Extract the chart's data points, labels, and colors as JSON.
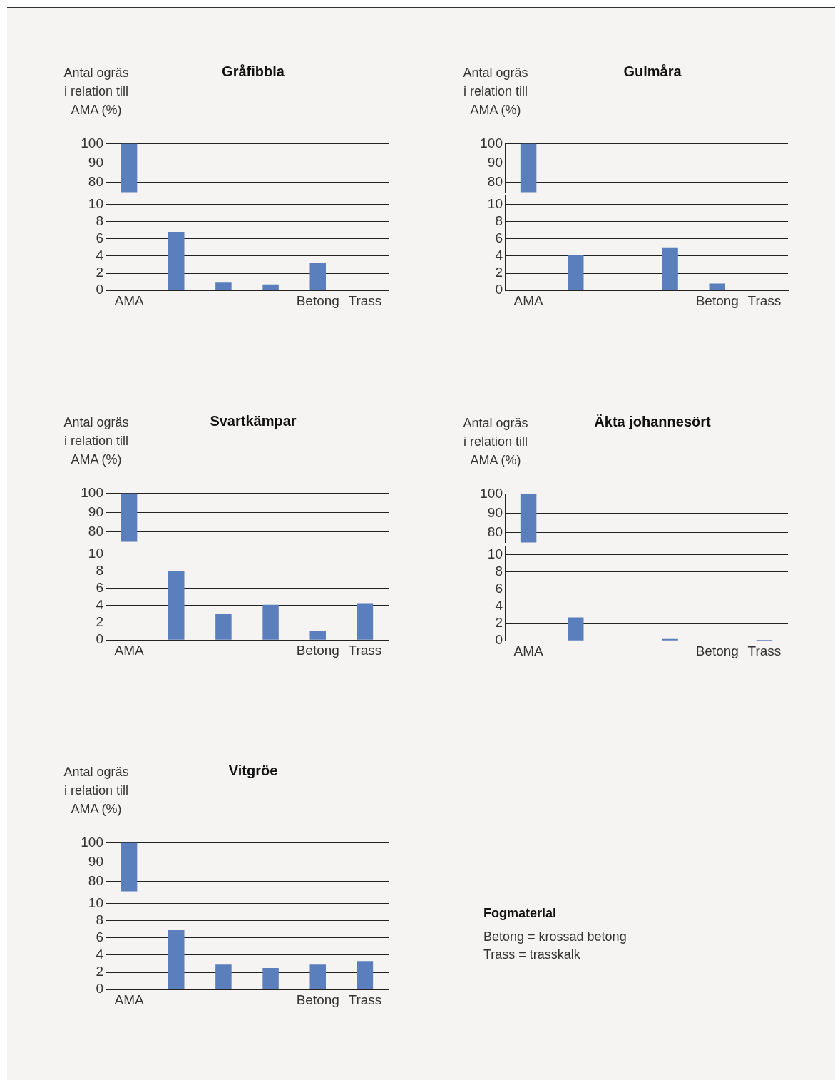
{
  "chart_data": [
    {
      "type": "bar",
      "title": "Gråfibbla",
      "ylabel": "Antal ogräs i relation till AMA (%)",
      "categories": [
        null,
        null,
        null,
        null,
        null,
        null
      ],
      "values": [
        100,
        null,
        null,
        null,
        null,
        null
      ],
      "color": "#5b7fbc",
      "ylim": [
        75,
        100
      ],
      "yticks": [
        80,
        90,
        100
      ],
      "grid": "y",
      "tick_labels": "y"
    },
    {
      "type": "bar",
      "categories": [
        "AMA",
        null,
        null,
        null,
        "Betong",
        "Trass"
      ],
      "values": [
        null,
        6.8,
        0.9,
        0.7,
        3.2,
        0
      ],
      "color": "#5b7fbc",
      "ylim": [
        0,
        11
      ],
      "yticks": [
        0,
        2,
        4,
        6,
        8,
        10
      ],
      "grid": "y"
    },
    {
      "type": "bar",
      "title": "Gulmåra",
      "ylabel": "Antal ogräs i relation till AMA (%)",
      "categories": [
        null,
        null,
        null,
        null,
        null,
        null
      ],
      "values": [
        100,
        null,
        null,
        null,
        null,
        null
      ],
      "color": "#5b7fbc",
      "ylim": [
        75,
        100
      ],
      "yticks": [
        80,
        90,
        100
      ],
      "grid": "y",
      "tick_labels": "y"
    },
    {
      "type": "bar",
      "categories": [
        "AMA",
        null,
        null,
        null,
        "Betong",
        "Trass"
      ],
      "values": [
        null,
        4.1,
        0,
        5.0,
        0.8,
        0
      ],
      "color": "#5b7fbc",
      "ylim": [
        0,
        11
      ],
      "yticks": [
        0,
        2,
        4,
        6,
        8,
        10
      ],
      "grid": "y"
    },
    {
      "type": "bar",
      "title": "Svartkämpar",
      "ylabel": "Antal ogräs i relation till AMA (%)",
      "categories": [
        null,
        null,
        null,
        null,
        null,
        null
      ],
      "values": [
        100,
        null,
        null,
        null,
        null,
        null
      ],
      "color": "#5b7fbc",
      "ylim": [
        75,
        100
      ],
      "yticks": [
        80,
        90,
        100
      ],
      "grid": "y",
      "tick_labels": "y"
    },
    {
      "type": "bar",
      "categories": [
        "AMA",
        null,
        null,
        null,
        "Betong",
        "Trass"
      ],
      "values": [
        null,
        8.0,
        3.0,
        4.1,
        1.1,
        4.2
      ],
      "color": "#5b7fbc",
      "ylim": [
        0,
        11
      ],
      "yticks": [
        0,
        2,
        4,
        6,
        8,
        10
      ],
      "grid": "y"
    },
    {
      "type": "bar",
      "title": "Äkta johannesört",
      "ylabel": "Antal ogräs i relation till AMA (%)",
      "categories": [
        null,
        null,
        null,
        null,
        null,
        null
      ],
      "values": [
        100,
        null,
        null,
        null,
        null,
        null
      ],
      "color": "#5b7fbc",
      "ylim": [
        75,
        100
      ],
      "yticks": [
        80,
        90,
        100
      ],
      "grid": "y",
      "tick_labels": "y"
    },
    {
      "type": "bar",
      "categories": [
        "AMA",
        null,
        null,
        null,
        "Betong",
        "Trass"
      ],
      "values": [
        null,
        2.7,
        0,
        0.2,
        0,
        0.1
      ],
      "color": "#5b7fbc",
      "ylim": [
        0,
        11
      ],
      "yticks": [
        0,
        2,
        4,
        6,
        8,
        10
      ],
      "grid": "y"
    },
    {
      "type": "bar",
      "title": "Vitgröe",
      "ylabel": "Antal ogräs i relation till AMA (%)",
      "categories": [
        null,
        null,
        null,
        null,
        null,
        null
      ],
      "values": [
        100,
        null,
        null,
        null,
        null,
        null
      ],
      "color": "#5b7fbc",
      "ylim": [
        75,
        100
      ],
      "yticks": [
        80,
        90,
        100
      ],
      "grid": "y",
      "tick_labels": "y"
    },
    {
      "type": "bar",
      "categories": [
        "AMA",
        null,
        null,
        null,
        "Betong",
        "Trass"
      ],
      "values": [
        null,
        6.9,
        2.9,
        2.5,
        2.9,
        3.3
      ],
      "color": "#5b7fbc",
      "ylim": [
        0,
        11
      ],
      "yticks": [
        0,
        2,
        4,
        6,
        8,
        10
      ],
      "grid": "y"
    },
    {
      "type": "other",
      "title": "Fogmaterial",
      "annotations": [
        "Betong = krossad betong",
        "Trass = trasskalk"
      ]
    }
  ]
}
